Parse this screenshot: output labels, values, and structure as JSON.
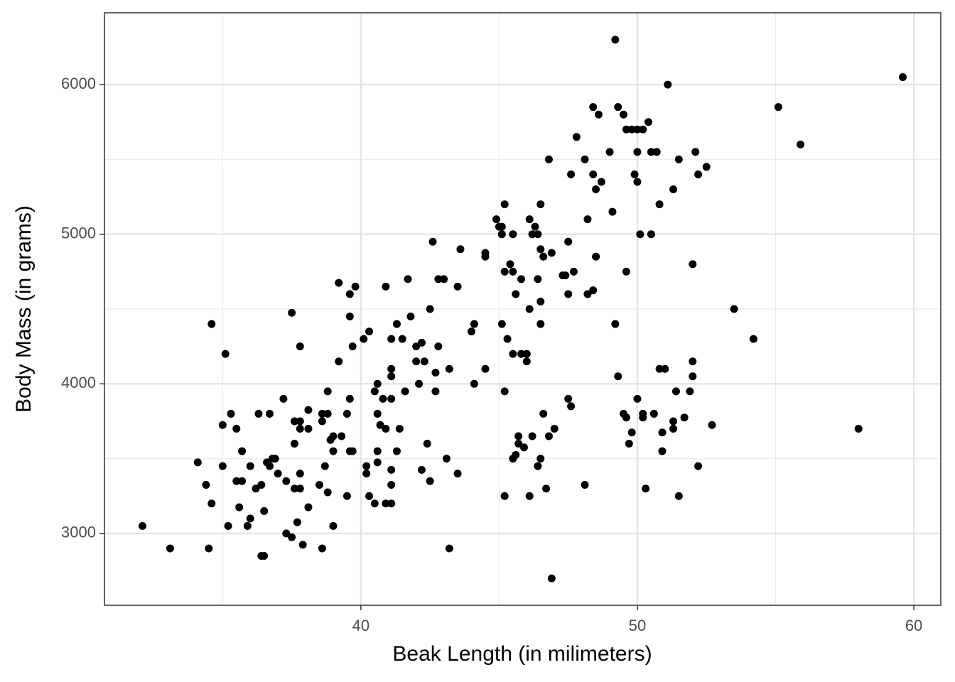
{
  "chart_data": {
    "type": "scatter",
    "x_label": "Beak Length (in milimeters)",
    "y_label": "Body Mass (in grams)",
    "color": "#000000",
    "grid": true,
    "xlim": [
      30.725,
      60.975
    ],
    "ylim": [
      2520,
      6480
    ],
    "xticks": [
      40,
      50,
      60
    ],
    "yticks": [
      3000,
      4000,
      5000,
      6000
    ],
    "x": [
      32.1,
      33.1,
      34.5,
      34.1,
      34.4,
      34.6,
      34.6,
      35.1,
      35.0,
      35.0,
      35.2,
      35.3,
      35.5,
      35.5,
      35.6,
      35.7,
      35.7,
      35.9,
      36.0,
      36.0,
      36.2,
      36.3,
      36.4,
      36.4,
      36.5,
      36.5,
      36.6,
      36.7,
      36.7,
      36.8,
      36.9,
      37.0,
      37.2,
      37.3,
      37.3,
      37.5,
      37.5,
      37.6,
      37.6,
      37.6,
      37.7,
      37.8,
      37.8,
      37.8,
      37.8,
      37.8,
      37.9,
      38.1,
      38.1,
      38.1,
      38.5,
      38.6,
      38.6,
      38.6,
      38.7,
      38.8,
      38.8,
      38.8,
      38.9,
      39.0,
      39.0,
      39.0,
      39.2,
      39.2,
      39.3,
      39.5,
      39.5,
      39.6,
      39.6,
      39.6,
      39.6,
      39.7,
      39.7,
      39.8,
      40.1,
      40.2,
      40.2,
      40.3,
      40.3,
      40.5,
      40.5,
      40.6,
      40.6,
      40.6,
      40.6,
      40.7,
      40.8,
      40.9,
      40.9,
      40.9,
      41.1,
      41.1,
      41.1,
      41.1,
      41.1,
      41.1,
      41.1,
      41.3,
      41.3,
      41.4,
      41.5,
      41.6,
      41.7,
      41.8,
      42.0,
      42.0,
      42.1,
      42.2,
      42.2,
      42.3,
      42.4,
      42.5,
      42.5,
      42.6,
      42.7,
      42.7,
      42.8,
      42.8,
      43.0,
      43.1,
      43.2,
      43.2,
      43.5,
      43.5,
      43.6,
      44.1,
      44.0,
      44.1,
      44.5,
      44.5,
      44.5,
      44.9,
      45.0,
      45.1,
      45.1,
      45.1,
      45.2,
      45.2,
      45.2,
      45.2,
      45.3,
      45.4,
      45.5,
      45.5,
      45.5,
      45.5,
      45.6,
      45.6,
      45.7,
      45.7,
      45.8,
      45.8,
      45.9,
      46.0,
      46.0,
      46.1,
      46.1,
      46.1,
      46.2,
      46.2,
      46.3,
      46.4,
      46.4,
      46.4,
      46.5,
      46.5,
      46.5,
      46.5,
      46.5,
      46.6,
      46.6,
      46.7,
      46.8,
      46.8,
      46.9,
      46.9,
      47.0,
      47.3,
      47.4,
      47.5,
      47.5,
      47.5,
      47.6,
      47.6,
      47.7,
      47.8,
      48.1,
      48.1,
      48.2,
      48.2,
      48.4,
      48.4,
      48.4,
      48.5,
      48.5,
      48.6,
      48.7,
      49.0,
      49.1,
      49.2,
      49.2,
      49.3,
      49.3,
      49.5,
      49.5,
      49.6,
      49.6,
      49.6,
      49.7,
      49.8,
      49.8,
      49.9,
      50.0,
      50.0,
      50.0,
      50.0,
      50.1,
      50.2,
      50.2,
      50.2,
      50.3,
      50.4,
      50.5,
      50.5,
      50.6,
      50.7,
      50.8,
      50.8,
      50.9,
      50.9,
      51.0,
      51.1,
      51.3,
      51.3,
      51.3,
      51.4,
      51.5,
      51.5,
      51.7,
      51.9,
      52.0,
      52.0,
      52.0,
      52.1,
      52.2,
      52.2,
      52.5,
      52.7,
      53.5,
      54.2,
      55.1,
      55.9,
      58.0,
      59.6
    ],
    "y": [
      3050,
      2900,
      2900,
      3475,
      3325,
      3200,
      4400,
      4200,
      3725,
      3450,
      3050,
      3800,
      3700,
      3350,
      3175,
      3550,
      3350,
      3050,
      3100,
      3450,
      3300,
      3800,
      3325,
      2850,
      2850,
      3150,
      3475,
      3800,
      3450,
      3500,
      3500,
      3400,
      3900,
      3350,
      3000,
      4475,
      2975,
      3750,
      3600,
      3300,
      3075,
      3750,
      4250,
      3700,
      3400,
      3300,
      2925,
      3825,
      3700,
      3175,
      3325,
      3750,
      3800,
      2900,
      3450,
      3950,
      3800,
      3275,
      3625,
      3650,
      3550,
      3050,
      4675,
      4150,
      3650,
      3800,
      3250,
      4600,
      4450,
      3900,
      3550,
      3550,
      4250,
      4650,
      4300,
      3450,
      3400,
      4350,
      3250,
      3200,
      3950,
      4000,
      3800,
      3550,
      3475,
      3725,
      3900,
      4650,
      3700,
      3200,
      4050,
      4100,
      4300,
      3900,
      3425,
      3325,
      3200,
      4400,
      3550,
      3700,
      4300,
      3950,
      4700,
      4450,
      4250,
      4150,
      4000,
      4275,
      3425,
      4150,
      3600,
      4500,
      3350,
      4950,
      4075,
      3950,
      4250,
      4700,
      4700,
      3500,
      4100,
      2900,
      4650,
      3400,
      4900,
      4000,
      4350,
      4400,
      4100,
      4875,
      4850,
      5100,
      5050,
      5050,
      5000,
      4400,
      5200,
      4750,
      3950,
      3250,
      4300,
      4800,
      4750,
      4200,
      5000,
      3500,
      4600,
      3525,
      3650,
      3600,
      4700,
      4200,
      3575,
      4200,
      4150,
      5100,
      4500,
      3250,
      5000,
      3650,
      5050,
      5000,
      4700,
      3450,
      5200,
      4900,
      4550,
      4400,
      3500,
      4850,
      3800,
      3300,
      5500,
      3650,
      4875,
      2700,
      3700,
      4725,
      4725,
      4950,
      4600,
      3900,
      5400,
      3850,
      4750,
      5650,
      5500,
      3325,
      5100,
      4600,
      5850,
      5400,
      4625,
      5300,
      4850,
      5800,
      5350,
      5550,
      5150,
      6300,
      4400,
      5850,
      4050,
      5800,
      3800,
      5700,
      4750,
      3775,
      3600,
      5700,
      3675,
      5400,
      5700,
      5550,
      5350,
      3900,
      5000,
      5700,
      3800,
      3775,
      3300,
      5750,
      5550,
      5000,
      3800,
      5550,
      5200,
      4100,
      3675,
      3550,
      4100,
      6000,
      5300,
      3750,
      3700,
      3950,
      5500,
      3250,
      3775,
      3950,
      4800,
      4150,
      4050,
      5550,
      5400,
      3450,
      5450,
      3725,
      4500,
      4300,
      5850,
      5600,
      3700,
      6050
    ]
  }
}
